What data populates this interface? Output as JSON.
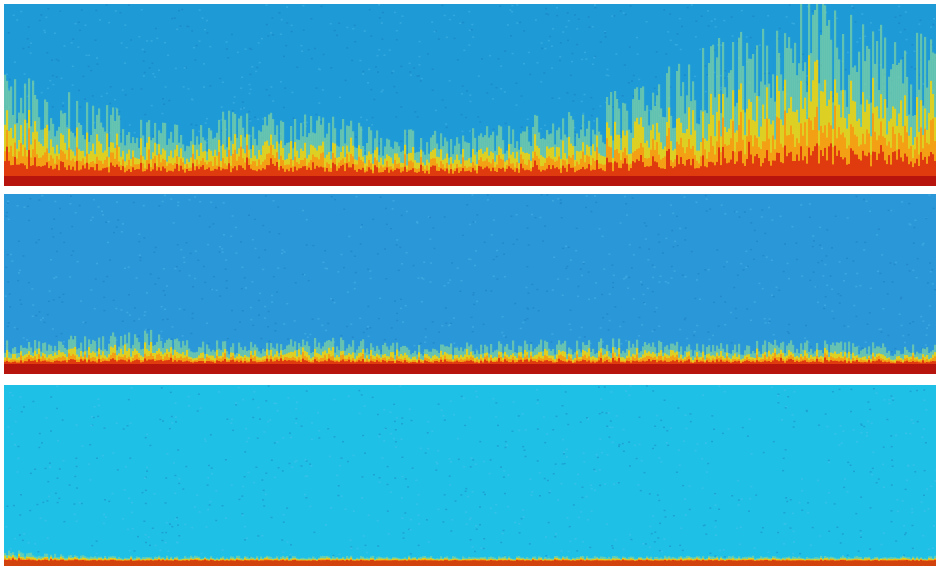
{
  "panels": [
    {
      "id": "top",
      "background_color": "#1e9ad6",
      "heat_colors": [
        "#f2d20c",
        "#f59a14",
        "#e03a0f",
        "#b31410"
      ],
      "mid_color": "#7fd3a2",
      "bottom_band_color": "#b8140e",
      "heat_profile": [
        0.4,
        0.35,
        0.3,
        0.22,
        0.22,
        0.26,
        0.28,
        0.24,
        0.2,
        0.18,
        0.18,
        0.22,
        0.26,
        0.32,
        0.4,
        0.52,
        0.62,
        0.7,
        0.66,
        0.6,
        0.55
      ]
    },
    {
      "id": "middle",
      "background_color": "#2a97d8",
      "heat_colors": [
        "#f2d20c",
        "#f59a14",
        "#e03a0f",
        "#b31410"
      ],
      "mid_color": "#7fd3a2",
      "bottom_band_color": "#b8140e",
      "heat_profile": [
        0.09,
        0.1,
        0.12,
        0.14,
        0.1,
        0.09,
        0.1,
        0.11,
        0.09,
        0.08,
        0.09,
        0.1,
        0.09,
        0.1,
        0.09,
        0.08,
        0.09,
        0.1,
        0.09,
        0.08,
        0.08
      ]
    },
    {
      "id": "bottom",
      "background_color": "#1fc0e6",
      "heat_colors": [
        "#f2d20c",
        "#f59a14",
        "#e03a0f",
        "#b31410"
      ],
      "mid_color": "#7fd3a2",
      "bottom_band_color": "#d2420d",
      "heat_profile": [
        0.05,
        0.03,
        0.02,
        0.02,
        0.02,
        0.02,
        0.02,
        0.02,
        0.02,
        0.02,
        0.02,
        0.02,
        0.02,
        0.02,
        0.02,
        0.02,
        0.02,
        0.02,
        0.02,
        0.02,
        0.02
      ]
    }
  ]
}
